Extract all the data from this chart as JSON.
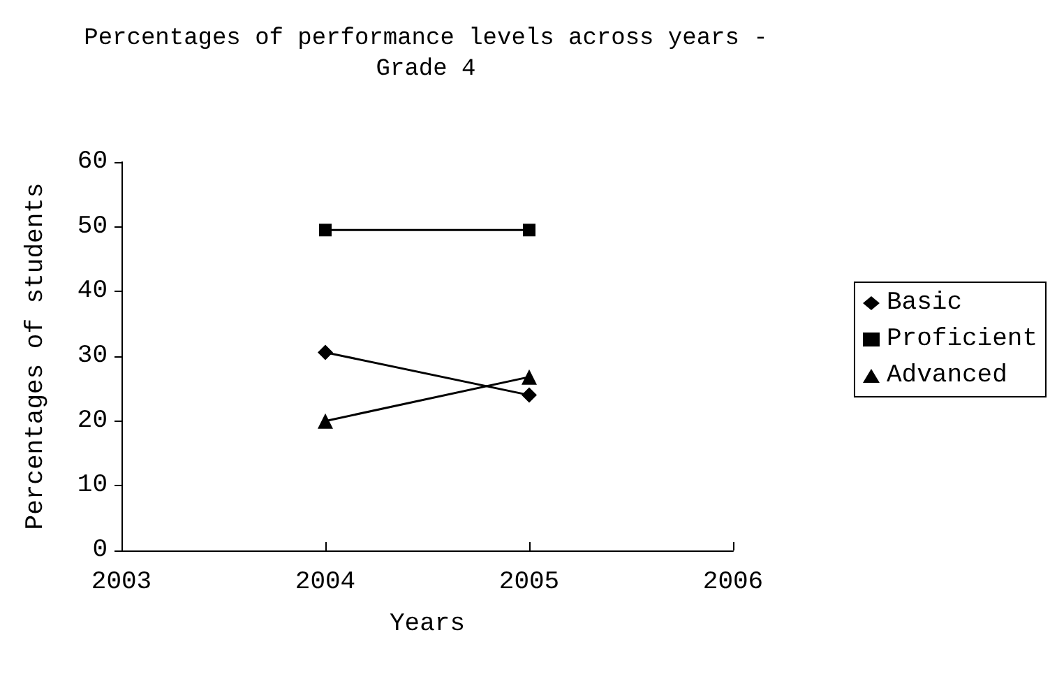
{
  "chart_data": {
    "type": "line",
    "title": "Percentages of performance levels across years -\nGrade 4",
    "xlabel": "Years",
    "ylabel": "Percentages of students",
    "x": [
      2004,
      2005
    ],
    "series": [
      {
        "name": "Basic",
        "color": "#000000",
        "marker": "diamond",
        "values": [
          30.6,
          24.0
        ]
      },
      {
        "name": "Proficient",
        "color": "#000000",
        "marker": "square",
        "values": [
          49.5,
          49.5
        ]
      },
      {
        "name": "Advanced",
        "color": "#000000",
        "marker": "triangle",
        "values": [
          20.0,
          26.8
        ]
      }
    ],
    "xlim": [
      2003,
      2006
    ],
    "xticks": [
      2003,
      2004,
      2005,
      2006
    ],
    "ylim": [
      0,
      60
    ],
    "yticks": [
      0,
      10,
      20,
      30,
      40,
      50,
      60
    ],
    "grid": false,
    "legend": "right",
    "line_style": "solid"
  }
}
